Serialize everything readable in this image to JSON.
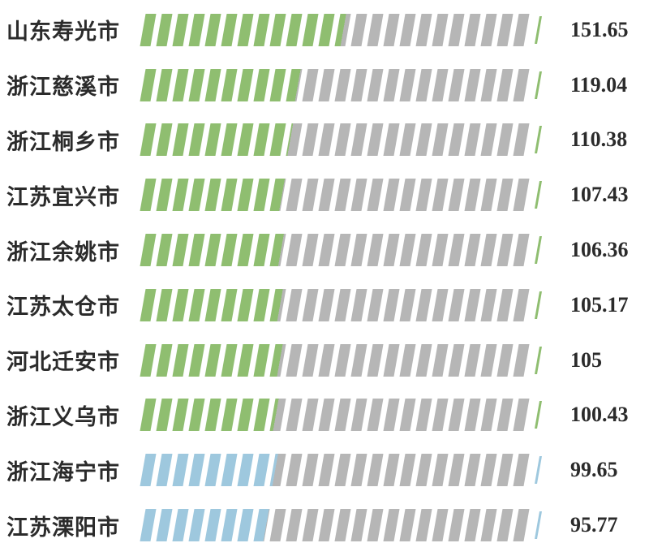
{
  "chart_data": {
    "type": "bar",
    "orientation": "horizontal",
    "categories": [
      "山东寿光市",
      "浙江慈溪市",
      "浙江桐乡市",
      "江苏宜兴市",
      "浙江余姚市",
      "江苏太仓市",
      "河北迁安市",
      "浙江义乌市",
      "浙江海宁市",
      "江苏溧阳市"
    ],
    "values": [
      151.65,
      119.04,
      110.38,
      107.43,
      106.36,
      105.17,
      105,
      100.43,
      99.65,
      95.77
    ],
    "value_labels": [
      "151.65",
      "119.04",
      "110.38",
      "107.43",
      "106.36",
      "105.17",
      "105",
      "100.43",
      "99.65",
      "95.77"
    ],
    "row_colors": [
      "green",
      "green",
      "green",
      "green",
      "green",
      "green",
      "green",
      "green",
      "blue",
      "blue"
    ],
    "palette": {
      "green": "#8fbe70",
      "blue": "#9ec8de",
      "track": "#b6b6b6",
      "text": "#2b2b2b"
    },
    "segments_total": 24,
    "scale_max": 290,
    "grid": "off",
    "legend": "none",
    "xlabel": "",
    "ylabel": ""
  }
}
